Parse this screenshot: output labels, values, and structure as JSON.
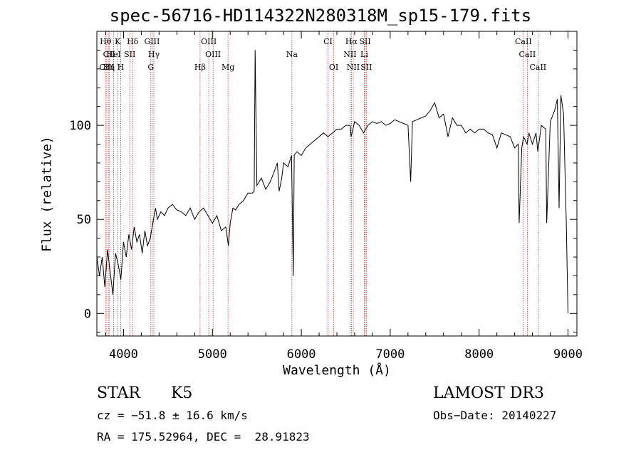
{
  "chart_data": {
    "type": "line",
    "title": "spec-56716-HD114322N280318M_sp15-179.fits",
    "xlabel": "Wavelength (Å)",
    "ylabel": "Flux (relative)",
    "xlim": [
      3700,
      9100
    ],
    "ylim": [
      -12,
      150
    ],
    "xticks": [
      4000,
      5000,
      6000,
      7000,
      8000,
      9000
    ],
    "yticks": [
      0,
      50,
      100
    ],
    "series": [
      {
        "name": "flux",
        "x": [
          3700,
          3730,
          3760,
          3790,
          3820,
          3850,
          3880,
          3910,
          3940,
          3970,
          4000,
          4030,
          4060,
          4090,
          4120,
          4150,
          4180,
          4210,
          4240,
          4270,
          4300,
          4330,
          4345,
          4360,
          4380,
          4420,
          4460,
          4500,
          4550,
          4600,
          4650,
          4700,
          4750,
          4800,
          4850,
          4900,
          4950,
          5000,
          5050,
          5100,
          5150,
          5180,
          5200,
          5230,
          5260,
          5300,
          5350,
          5400,
          5450,
          5470,
          5480,
          5500,
          5550,
          5600,
          5650,
          5700,
          5730,
          5750,
          5780,
          5800,
          5850,
          5890,
          5910,
          5920,
          5950,
          6000,
          6050,
          6100,
          6150,
          6200,
          6250,
          6300,
          6350,
          6400,
          6450,
          6500,
          6550,
          6560,
          6600,
          6650,
          6700,
          6750,
          6800,
          6850,
          6900,
          6950,
          7000,
          7050,
          7100,
          7150,
          7200,
          7230,
          7250,
          7300,
          7350,
          7400,
          7450,
          7500,
          7550,
          7600,
          7650,
          7700,
          7750,
          7800,
          7850,
          7900,
          7950,
          8000,
          8050,
          8100,
          8150,
          8200,
          8250,
          8300,
          8350,
          8400,
          8440,
          8450,
          8480,
          8500,
          8540,
          8560,
          8600,
          8640,
          8660,
          8700,
          8750,
          8760,
          8800,
          8850,
          8880,
          8900,
          8920,
          8950,
          8980,
          9000
        ],
        "values": [
          30,
          20,
          30,
          14,
          34,
          22,
          10,
          32,
          26,
          18,
          38,
          30,
          42,
          34,
          46,
          38,
          42,
          32,
          44,
          36,
          40,
          48,
          52,
          56,
          50,
          54,
          52,
          56,
          58,
          55,
          54,
          52,
          56,
          50,
          54,
          56,
          52,
          48,
          52,
          44,
          46,
          36,
          48,
          56,
          55,
          58,
          60,
          64,
          64,
          65,
          140,
          68,
          72,
          66,
          70,
          76,
          80,
          65,
          72,
          80,
          78,
          84,
          20,
          84,
          86,
          84,
          88,
          90,
          92,
          94,
          96,
          94,
          96,
          98,
          98,
          100,
          100,
          94,
          102,
          100,
          96,
          100,
          102,
          101,
          102,
          100,
          101,
          103,
          102,
          101,
          100,
          70,
          102,
          103,
          104,
          105,
          108,
          112,
          104,
          106,
          94,
          104,
          100,
          100,
          96,
          98,
          96,
          98,
          98,
          96,
          95,
          88,
          96,
          95,
          94,
          88,
          90,
          48,
          88,
          94,
          90,
          96,
          90,
          96,
          86,
          100,
          98,
          48,
          102,
          108,
          114,
          56,
          116,
          106,
          50,
          0
        ]
      }
    ],
    "lines": [
      {
        "label": "Hθ",
        "x": 3798,
        "row": 1
      },
      {
        "label": "CII",
        "x": 3838,
        "row": 2
      },
      {
        "label": "CIII",
        "x": 3812,
        "row": 3
      },
      {
        "label": "K",
        "x": 3934,
        "row": 1
      },
      {
        "label": "HeI",
        "x": 3889,
        "row": 2
      },
      {
        "label": "Hη",
        "x": 3835,
        "row": 3
      },
      {
        "label": "H",
        "x": 3968,
        "row": 3
      },
      {
        "label": "Hδ",
        "x": 4102,
        "row": 1
      },
      {
        "label": "SII",
        "x": 4070,
        "row": 2
      },
      {
        "label": "GIII",
        "x": 4320,
        "row": 1
      },
      {
        "label": "Hγ",
        "x": 4341,
        "row": 2
      },
      {
        "label": "G",
        "x": 4307,
        "row": 3
      },
      {
        "label": "OIII",
        "x": 4959,
        "row": 1
      },
      {
        "label": "OIII",
        "x": 5007,
        "row": 2
      },
      {
        "label": "Hβ",
        "x": 4861,
        "row": 3
      },
      {
        "label": "Mg",
        "x": 5175,
        "row": 3
      },
      {
        "label": "Na",
        "x": 5894,
        "row": 2
      },
      {
        "label": "CI",
        "x": 6300,
        "row": 1
      },
      {
        "label": "OI",
        "x": 6364,
        "row": 3
      },
      {
        "label": "Hα",
        "x": 6563,
        "row": 1
      },
      {
        "label": "NII",
        "x": 6548,
        "row": 2
      },
      {
        "label": "NII",
        "x": 6584,
        "row": 3
      },
      {
        "label": "SII",
        "x": 6717,
        "row": 1
      },
      {
        "label": "Li",
        "x": 6708,
        "row": 2
      },
      {
        "label": "SII",
        "x": 6731,
        "row": 3
      },
      {
        "label": "CaII",
        "x": 8498,
        "row": 1
      },
      {
        "label": "CaII",
        "x": 8542,
        "row": 2
      },
      {
        "label": "CaII",
        "x": 8662,
        "row": 3
      }
    ]
  },
  "info": {
    "class": "STAR",
    "subclass": "K5",
    "survey": "LAMOST DR3",
    "cz": "cz = −51.8 ± 16.6 km/s",
    "obs_date": "Obs−Date: 20140227",
    "coords": "RA = 175.52964, DEC =  28.91823"
  },
  "colors": {
    "line": "#000000",
    "marker": "#b22222"
  }
}
